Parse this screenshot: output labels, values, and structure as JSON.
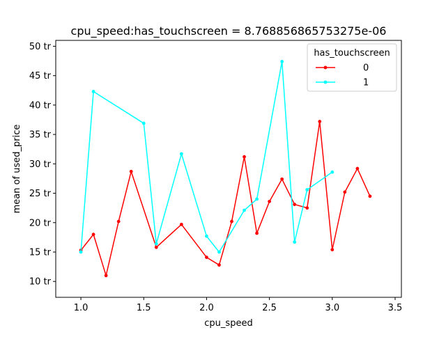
{
  "chart_data": {
    "type": "line",
    "title": "cpu_speed:has_touchscreen = 8.768856865753275e-06",
    "xlabel": "cpu_speed",
    "ylabel": "mean of used_price",
    "xlim": [
      0.8,
      3.55
    ],
    "ylim": [
      7.3,
      51.0
    ],
    "x_ticks": [
      1.0,
      1.5,
      2.0,
      2.5,
      3.0,
      3.5
    ],
    "x_tick_labels": [
      "1.0",
      "1.5",
      "2.0",
      "2.5",
      "3.0",
      "3.5"
    ],
    "y_ticks": [
      10,
      15,
      20,
      25,
      30,
      35,
      40,
      45,
      50
    ],
    "y_tick_labels": [
      "10 tr",
      "15 tr",
      "20 tr",
      "25 tr",
      "30 tr",
      "35 tr",
      "40 tr",
      "45 tr",
      "50 tr"
    ],
    "grid": false,
    "legend": {
      "title": "has_touchscreen",
      "position": "top-right"
    },
    "series": [
      {
        "name": "0",
        "color": "#ff0000",
        "x": [
          1.0,
          1.1,
          1.2,
          1.3,
          1.4,
          1.6,
          1.8,
          2.0,
          2.1,
          2.2,
          2.3,
          2.4,
          2.5,
          2.6,
          2.7,
          2.8,
          2.9,
          3.0,
          3.1,
          3.2,
          3.3
        ],
        "y": [
          15.3,
          18.0,
          11.0,
          20.2,
          28.7,
          15.8,
          19.7,
          14.1,
          12.8,
          20.2,
          31.2,
          18.2,
          23.6,
          27.4,
          23.1,
          22.5,
          37.2,
          15.4,
          25.2,
          29.2,
          24.5
        ]
      },
      {
        "name": "1",
        "color": "#00ffff",
        "x": [
          1.0,
          1.1,
          1.5,
          1.6,
          1.8,
          2.0,
          2.1,
          2.3,
          2.4,
          2.6,
          2.7,
          2.8,
          3.0
        ],
        "y": [
          15.0,
          42.3,
          36.9,
          16.4,
          31.7,
          17.7,
          15.0,
          22.1,
          24.0,
          47.4,
          16.7,
          25.6,
          28.6
        ]
      }
    ]
  }
}
